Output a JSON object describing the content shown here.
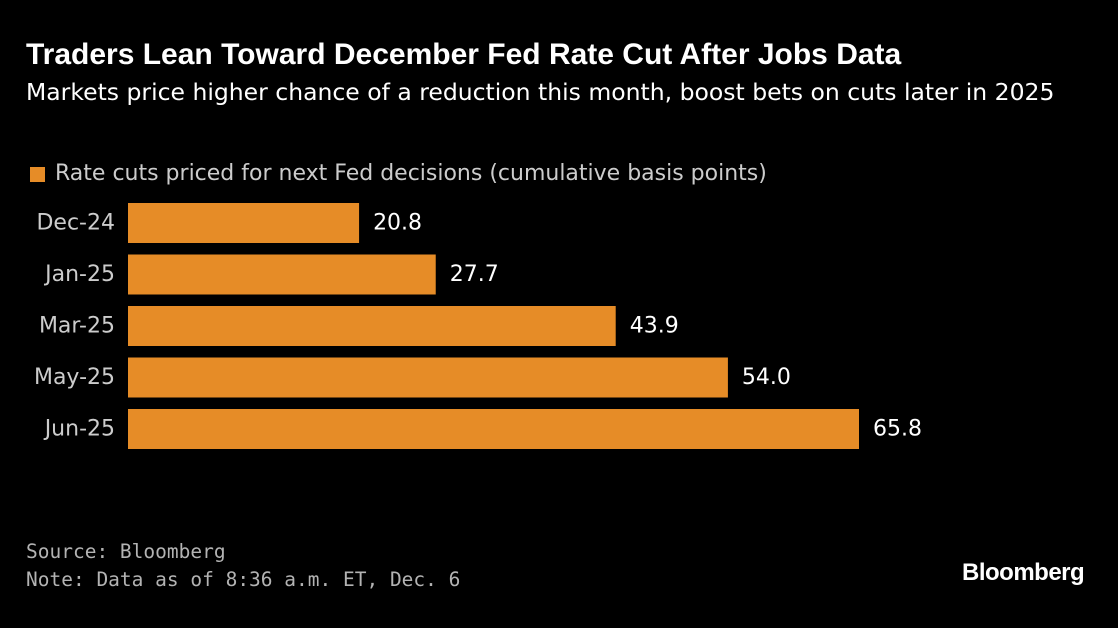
{
  "title": "Traders Lean Toward December Fed Rate Cut After Jobs Data",
  "subtitle": "Markets price higher chance of a reduction this month, boost bets on cuts later in 2025",
  "colors": {
    "background": "#000000",
    "bar": "#e68c27",
    "text": "#ffffff",
    "muted_text": "#cccccc"
  },
  "chart_data": {
    "type": "bar",
    "orientation": "horizontal",
    "categories": [
      "Dec-24",
      "Jan-25",
      "Mar-25",
      "May-25",
      "Jun-25"
    ],
    "series": [
      {
        "name": "Rate cuts priced for next Fed decisions (cumulative basis points)",
        "values": [
          20.8,
          27.7,
          43.9,
          54.0,
          65.8
        ],
        "labels": [
          "20.8",
          "27.7",
          "43.9",
          "54.0",
          "65.8"
        ]
      }
    ],
    "xlim": [
      0,
      65.8
    ],
    "legend_position": "top-left",
    "grid": false,
    "data_labels": true
  },
  "footer": {
    "source": "Source: Bloomberg",
    "note": "Note: Data as of 8:36 a.m. ET, Dec. 6"
  },
  "brand": "Bloomberg"
}
